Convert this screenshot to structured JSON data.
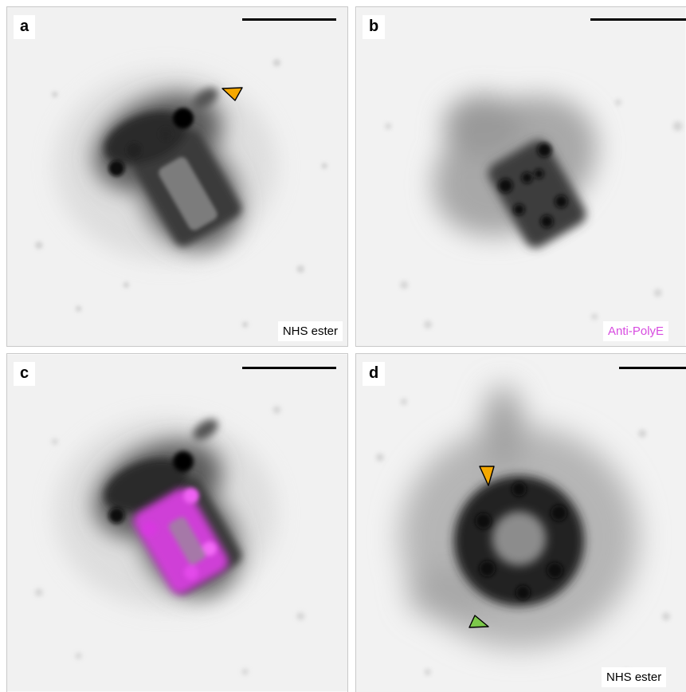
{
  "panels": {
    "a": {
      "letter": "a",
      "label": "NHS ester"
    },
    "b": {
      "letter": "b",
      "label": "Anti-PolyE"
    },
    "c": {
      "letter": "c"
    },
    "d": {
      "letter": "d",
      "label": "NHS ester"
    }
  },
  "colors": {
    "background": "#f2f2f2",
    "stain_dark": "#1a1a1a",
    "polye_magenta": "#e040e8",
    "arrowhead_orange": "#f5a800",
    "arrowhead_green": "#7cc84a"
  }
}
